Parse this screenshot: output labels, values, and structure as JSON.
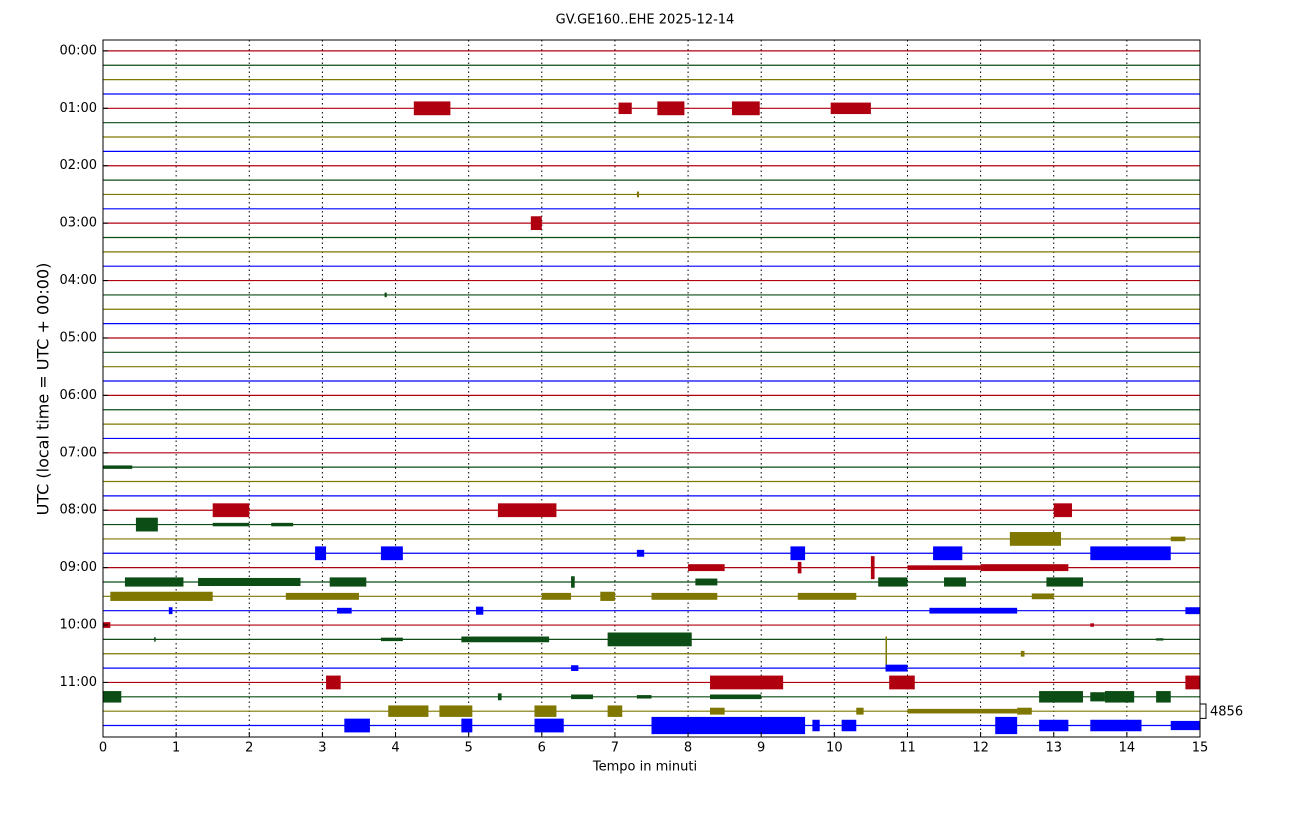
{
  "chart_data": {
    "type": "helicorder",
    "title": "GV.GE160..EHE 2025-12-14",
    "x_label": "Tempo in minuti",
    "y_label": "UTC (local time = UTC + 00:00)",
    "xlim": [
      0,
      15
    ],
    "xticks": [
      0,
      1,
      2,
      3,
      4,
      5,
      6,
      7,
      8,
      9,
      10,
      11,
      12,
      13,
      14,
      15
    ],
    "ylim": [
      -0.19,
      11.95
    ],
    "y_inverted": true,
    "yticks": [
      {
        "value": 0,
        "label": "00:00"
      },
      {
        "value": 1,
        "label": "01:00"
      },
      {
        "value": 2,
        "label": "02:00"
      },
      {
        "value": 3,
        "label": "03:00"
      },
      {
        "value": 4,
        "label": "04:00"
      },
      {
        "value": 5,
        "label": "05:00"
      },
      {
        "value": 6,
        "label": "06:00"
      },
      {
        "value": 7,
        "label": "07:00"
      },
      {
        "value": 8,
        "label": "08:00"
      },
      {
        "value": 9,
        "label": "09:00"
      },
      {
        "value": 10,
        "label": "10:00"
      },
      {
        "value": 11,
        "label": "11:00"
      }
    ],
    "x_grid": true,
    "scale": 4856,
    "series": [
      {
        "color": "#b00010",
        "offset": 0,
        "bursts": []
      },
      {
        "color": "#0b4d14",
        "offset": 0.25,
        "bursts": []
      },
      {
        "color": "#7f7700",
        "offset": 0.5,
        "bursts": []
      },
      {
        "color": "#0000ff",
        "offset": 0.75,
        "bursts": []
      },
      {
        "color": "#b00010",
        "offset": 1,
        "bursts": [
          [
            4.25,
            4.75,
            0.12
          ],
          [
            7.05,
            7.23,
            0.1
          ],
          [
            7.58,
            7.95,
            0.12
          ],
          [
            8.6,
            8.98,
            0.12
          ],
          [
            9.95,
            10.5,
            0.1
          ]
        ]
      },
      {
        "color": "#0b4d14",
        "offset": 1.25,
        "bursts": []
      },
      {
        "color": "#7f7700",
        "offset": 1.5,
        "bursts": []
      },
      {
        "color": "#0000ff",
        "offset": 1.75,
        "bursts": []
      },
      {
        "color": "#b00010",
        "offset": 2,
        "bursts": []
      },
      {
        "color": "#0b4d14",
        "offset": 2.25,
        "bursts": []
      },
      {
        "color": "#7f7700",
        "offset": 2.5,
        "bursts": [
          [
            7.3,
            7.33,
            0.05
          ]
        ]
      },
      {
        "color": "#0000ff",
        "offset": 2.75,
        "bursts": []
      },
      {
        "color": "#b00010",
        "offset": 3,
        "bursts": [
          [
            5.85,
            6.0,
            0.12
          ]
        ]
      },
      {
        "color": "#0b4d14",
        "offset": 3.25,
        "bursts": []
      },
      {
        "color": "#7f7700",
        "offset": 3.5,
        "bursts": []
      },
      {
        "color": "#0000ff",
        "offset": 3.75,
        "bursts": []
      },
      {
        "color": "#b00010",
        "offset": 4,
        "bursts": []
      },
      {
        "color": "#0b4d14",
        "offset": 4.25,
        "bursts": [
          [
            3.85,
            3.88,
            0.04
          ]
        ]
      },
      {
        "color": "#7f7700",
        "offset": 4.5,
        "bursts": []
      },
      {
        "color": "#0000ff",
        "offset": 4.75,
        "bursts": []
      },
      {
        "color": "#b00010",
        "offset": 5,
        "bursts": []
      },
      {
        "color": "#0b4d14",
        "offset": 5.25,
        "bursts": []
      },
      {
        "color": "#7f7700",
        "offset": 5.5,
        "bursts": []
      },
      {
        "color": "#0000ff",
        "offset": 5.75,
        "bursts": []
      },
      {
        "color": "#b00010",
        "offset": 6,
        "bursts": []
      },
      {
        "color": "#0b4d14",
        "offset": 6.25,
        "bursts": []
      },
      {
        "color": "#7f7700",
        "offset": 6.5,
        "bursts": []
      },
      {
        "color": "#0000ff",
        "offset": 6.75,
        "bursts": []
      },
      {
        "color": "#b00010",
        "offset": 7,
        "bursts": []
      },
      {
        "color": "#0b4d14",
        "offset": 7.25,
        "bursts": [
          [
            0,
            0.4,
            0.03
          ]
        ]
      },
      {
        "color": "#7f7700",
        "offset": 7.5,
        "bursts": []
      },
      {
        "color": "#0000ff",
        "offset": 7.75,
        "bursts": []
      },
      {
        "color": "#b00010",
        "offset": 8,
        "bursts": [
          [
            1.5,
            2.0,
            0.12
          ],
          [
            5.4,
            6.2,
            0.12
          ],
          [
            13.0,
            13.25,
            0.12
          ]
        ]
      },
      {
        "color": "#0b4d14",
        "offset": 8.25,
        "bursts": [
          [
            0.45,
            0.75,
            0.12
          ],
          [
            1.5,
            2.0,
            0.03
          ],
          [
            2.3,
            2.6,
            0.03
          ]
        ]
      },
      {
        "color": "#7f7700",
        "offset": 8.5,
        "bursts": [
          [
            12.4,
            13.1,
            0.12
          ],
          [
            14.6,
            14.8,
            0.04
          ]
        ]
      },
      {
        "color": "#0000ff",
        "offset": 8.75,
        "bursts": [
          [
            2.9,
            3.05,
            0.12
          ],
          [
            3.8,
            4.1,
            0.12
          ],
          [
            7.3,
            7.4,
            0.06
          ],
          [
            9.4,
            9.6,
            0.12
          ],
          [
            11.35,
            11.75,
            0.12
          ],
          [
            13.5,
            14.6,
            0.12
          ]
        ]
      },
      {
        "color": "#b00010",
        "offset": 9,
        "bursts": [
          [
            8.0,
            8.5,
            0.06
          ],
          [
            9.5,
            9.55,
            0.1
          ],
          [
            10.5,
            10.55,
            0.2
          ],
          [
            11.0,
            12.0,
            0.04
          ],
          [
            12.0,
            13.2,
            0.06
          ]
        ]
      },
      {
        "color": "#0b4d14",
        "offset": 9.25,
        "bursts": [
          [
            0.3,
            1.1,
            0.08
          ],
          [
            1.3,
            2.7,
            0.07
          ],
          [
            3.1,
            3.6,
            0.08
          ],
          [
            6.4,
            6.45,
            0.1
          ],
          [
            8.1,
            8.4,
            0.06
          ],
          [
            10.6,
            11.0,
            0.08
          ],
          [
            11.5,
            11.8,
            0.08
          ],
          [
            12.9,
            13.4,
            0.08
          ]
        ]
      },
      {
        "color": "#7f7700",
        "offset": 9.5,
        "bursts": [
          [
            0.1,
            1.5,
            0.08
          ],
          [
            2.5,
            3.5,
            0.06
          ],
          [
            6.0,
            6.4,
            0.06
          ],
          [
            6.8,
            7.0,
            0.08
          ],
          [
            7.5,
            8.4,
            0.06
          ],
          [
            9.5,
            10.3,
            0.06
          ],
          [
            12.7,
            13.0,
            0.05
          ]
        ]
      },
      {
        "color": "#0000ff",
        "offset": 9.75,
        "bursts": [
          [
            0.9,
            0.95,
            0.06
          ],
          [
            3.2,
            3.4,
            0.05
          ],
          [
            5.1,
            5.2,
            0.07
          ],
          [
            11.3,
            12.5,
            0.05
          ],
          [
            14.8,
            15,
            0.06
          ]
        ]
      },
      {
        "color": "#b00010",
        "offset": 10,
        "bursts": [
          [
            0,
            0.1,
            0.05
          ],
          [
            13.5,
            13.55,
            0.03
          ]
        ]
      },
      {
        "color": "#0b4d14",
        "offset": 10.25,
        "bursts": [
          [
            0.7,
            0.72,
            0.04
          ],
          [
            3.8,
            4.1,
            0.03
          ],
          [
            4.9,
            6.1,
            0.05
          ],
          [
            6.9,
            8.05,
            0.12
          ],
          [
            14.4,
            14.5,
            0.02
          ]
        ]
      },
      {
        "color": "#7f7700",
        "offset": 10.5,
        "bursts": [
          [
            10.7,
            10.72,
            0.3
          ],
          [
            12.55,
            12.6,
            0.05
          ]
        ]
      },
      {
        "color": "#0000ff",
        "offset": 10.75,
        "bursts": [
          [
            6.4,
            6.5,
            0.05
          ],
          [
            10.7,
            11.0,
            0.06
          ]
        ]
      },
      {
        "color": "#b00010",
        "offset": 11,
        "bursts": [
          [
            3.05,
            3.25,
            0.12
          ],
          [
            8.3,
            9.3,
            0.12
          ],
          [
            10.75,
            11.1,
            0.12
          ],
          [
            14.8,
            15,
            0.12
          ]
        ]
      },
      {
        "color": "#0b4d14",
        "offset": 11.25,
        "bursts": [
          [
            0,
            0.25,
            0.1
          ],
          [
            5.4,
            5.45,
            0.06
          ],
          [
            6.4,
            6.7,
            0.04
          ],
          [
            7.3,
            7.5,
            0.03
          ],
          [
            8.3,
            9.0,
            0.04
          ],
          [
            12.8,
            13.4,
            0.1
          ],
          [
            13.5,
            13.7,
            0.08
          ],
          [
            13.7,
            14.1,
            0.1
          ],
          [
            14.4,
            14.6,
            0.1
          ]
        ]
      },
      {
        "color": "#7f7700",
        "offset": 11.5,
        "bursts": [
          [
            3.9,
            4.45,
            0.1
          ],
          [
            4.6,
            5.05,
            0.1
          ],
          [
            5.9,
            6.2,
            0.1
          ],
          [
            6.9,
            7.1,
            0.1
          ],
          [
            8.3,
            8.5,
            0.06
          ],
          [
            10.3,
            10.4,
            0.06
          ],
          [
            11.0,
            12.5,
            0.04
          ],
          [
            12.5,
            12.7,
            0.06
          ]
        ]
      },
      {
        "color": "#0000ff",
        "offset": 11.75,
        "bursts": [
          [
            3.3,
            3.65,
            0.12
          ],
          [
            4.9,
            5.05,
            0.12
          ],
          [
            5.9,
            6.3,
            0.12
          ],
          [
            7.5,
            9.6,
            0.15
          ],
          [
            9.7,
            9.8,
            0.1
          ],
          [
            10.1,
            10.3,
            0.1
          ],
          [
            12.2,
            12.5,
            0.15
          ],
          [
            12.8,
            13.2,
            0.1
          ],
          [
            13.5,
            14.2,
            0.1
          ],
          [
            14.6,
            15,
            0.08
          ]
        ]
      }
    ]
  }
}
